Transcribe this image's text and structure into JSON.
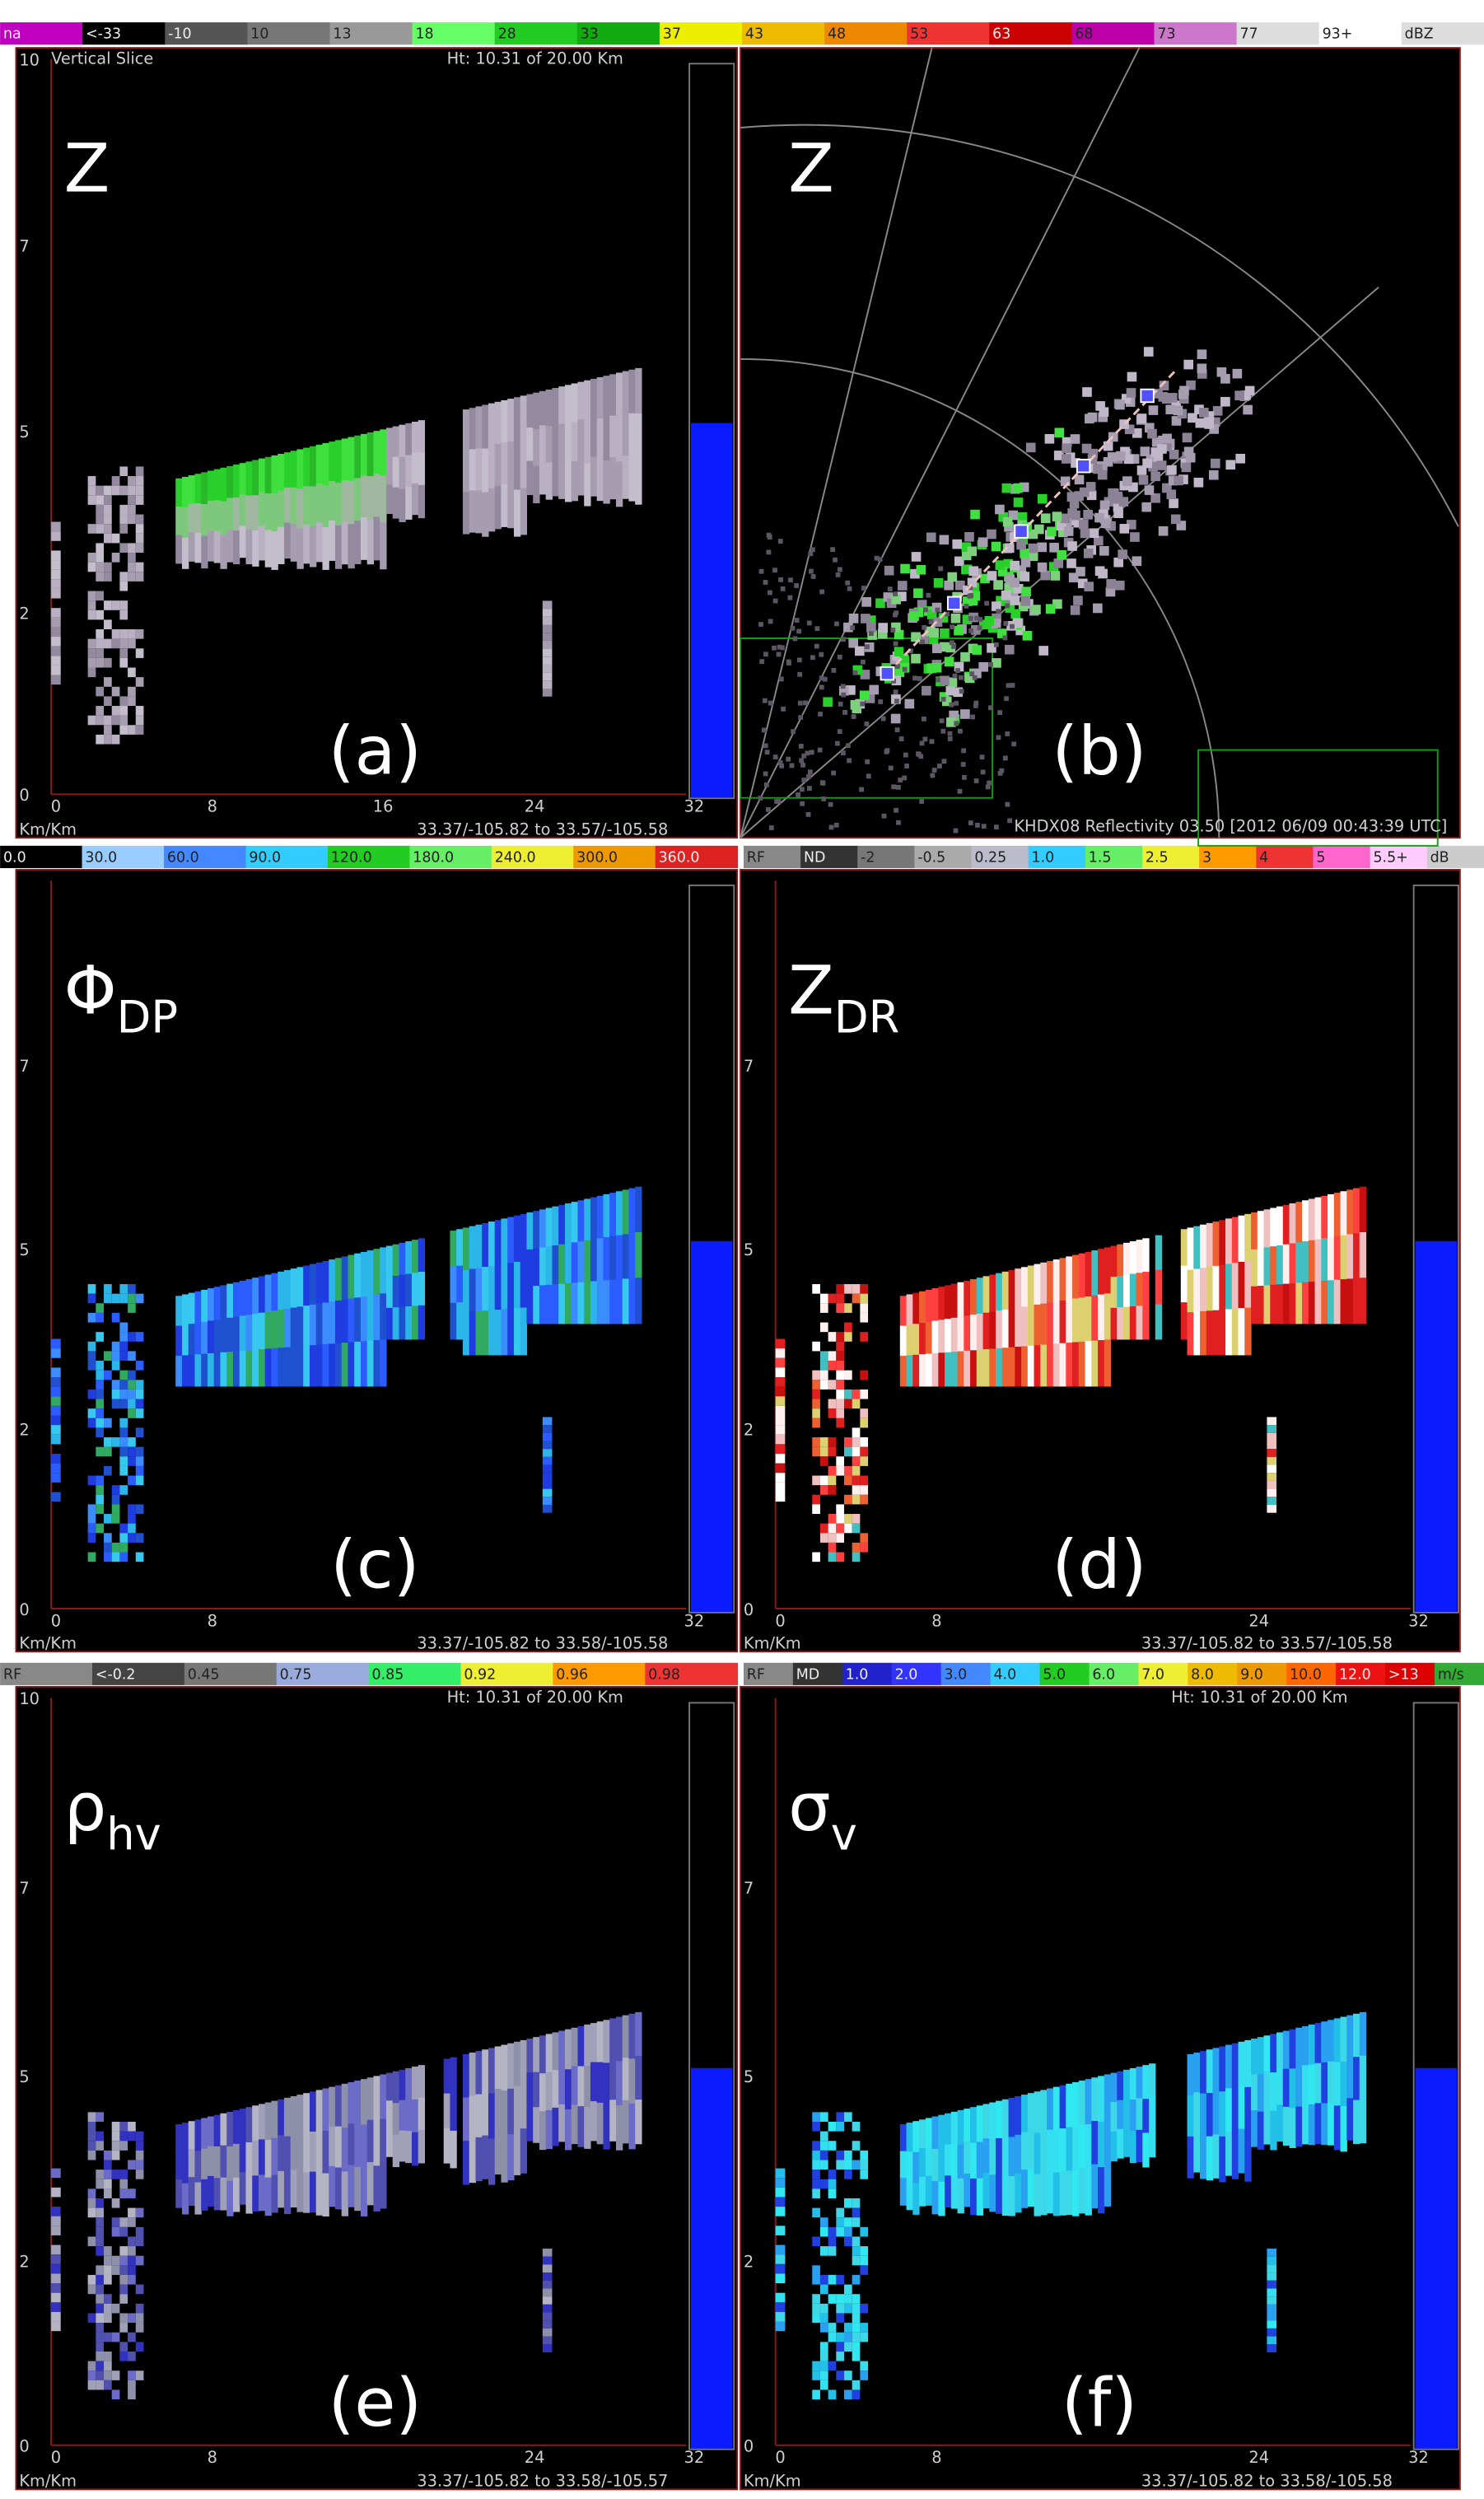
{
  "colorbars": [
    {
      "labels": [
        "na",
        "<-33",
        "-10",
        "10",
        "13",
        "18",
        "28",
        "33",
        "37",
        "43",
        "48",
        "53",
        "63",
        "68",
        "73",
        "77",
        "93+",
        "dBZ"
      ]
    },
    {
      "labels": [
        "0.0",
        "30.0",
        "60.0",
        "90.0",
        "120.0",
        "180.0",
        "240.0",
        "300.0",
        "360.0"
      ]
    },
    {
      "labels": [
        "RF",
        "ND",
        "-2",
        "-0.5",
        "0.25",
        "1.0",
        "1.5",
        "2.5",
        "3",
        "4",
        "5",
        "5.5+",
        "dB"
      ]
    },
    {
      "labels": [
        "RF",
        "<-0.2",
        "0.45",
        "0.75",
        "0.85",
        "0.92",
        "0.96",
        "0.98"
      ]
    },
    {
      "labels": [
        "RF",
        "MD",
        "1.0",
        "2.0",
        "3.0",
        "4.0",
        "5.0",
        "6.0",
        "7.0",
        "8.0",
        "9.0",
        "10.0",
        "12.0",
        ">13",
        "m/s"
      ]
    }
  ],
  "panels": [
    {
      "label": "Z",
      "tag": "(a)",
      "header_left": "Vertical Slice",
      "header_right": "Ht: 10.31 of 20.00 Km",
      "yticks": [
        "10",
        "7",
        "5",
        "2",
        "0"
      ],
      "xticks": [
        "0",
        "8",
        "16",
        "24",
        "32"
      ],
      "unit": "Km/Km",
      "footer": "33.37/-105.82 to 33.57/-105.58"
    },
    {
      "label": "Z",
      "tag": "(b)",
      "footer": "KHDX08 Reflectivity 03.50 [2012 06/09 00:43:39 UTC]"
    },
    {
      "label": "Φ",
      "sub": "DP",
      "tag": "(c)",
      "yticks": [
        "7",
        "5",
        "2",
        "0"
      ],
      "xticks": [
        "0",
        "8",
        "32"
      ],
      "unit": "Km/Km",
      "footer": "33.37/-105.82 to 33.58/-105.58"
    },
    {
      "label": "Z",
      "sub": "DR",
      "tag": "(d)",
      "yticks": [
        "7",
        "5",
        "2",
        "0"
      ],
      "xticks": [
        "0",
        "8",
        "24",
        "32"
      ],
      "unit": "Km/Km",
      "footer": "33.37/-105.82 to 33.57/-105.58"
    },
    {
      "label": "ρ",
      "sub": "hv",
      "tag": "(e)",
      "header_right": "Ht: 10.31 of 20.00 Km",
      "yticks": [
        "10",
        "7",
        "5",
        "2",
        "0"
      ],
      "xticks": [
        "0",
        "8",
        "24",
        "32"
      ],
      "unit": "Km/Km",
      "footer": "33.37/-105.82 to 33.58/-105.57"
    },
    {
      "label": "σ",
      "sub": "v",
      "tag": "(f)",
      "header_right": "Ht: 10.31 of 20.00 Km",
      "yticks": [
        "7",
        "5",
        "2",
        "0"
      ],
      "xticks": [
        "0",
        "8",
        "24",
        "32"
      ],
      "unit": "Km/Km",
      "footer": "33.37/-105.82 to 33.58/-105.58"
    }
  ]
}
